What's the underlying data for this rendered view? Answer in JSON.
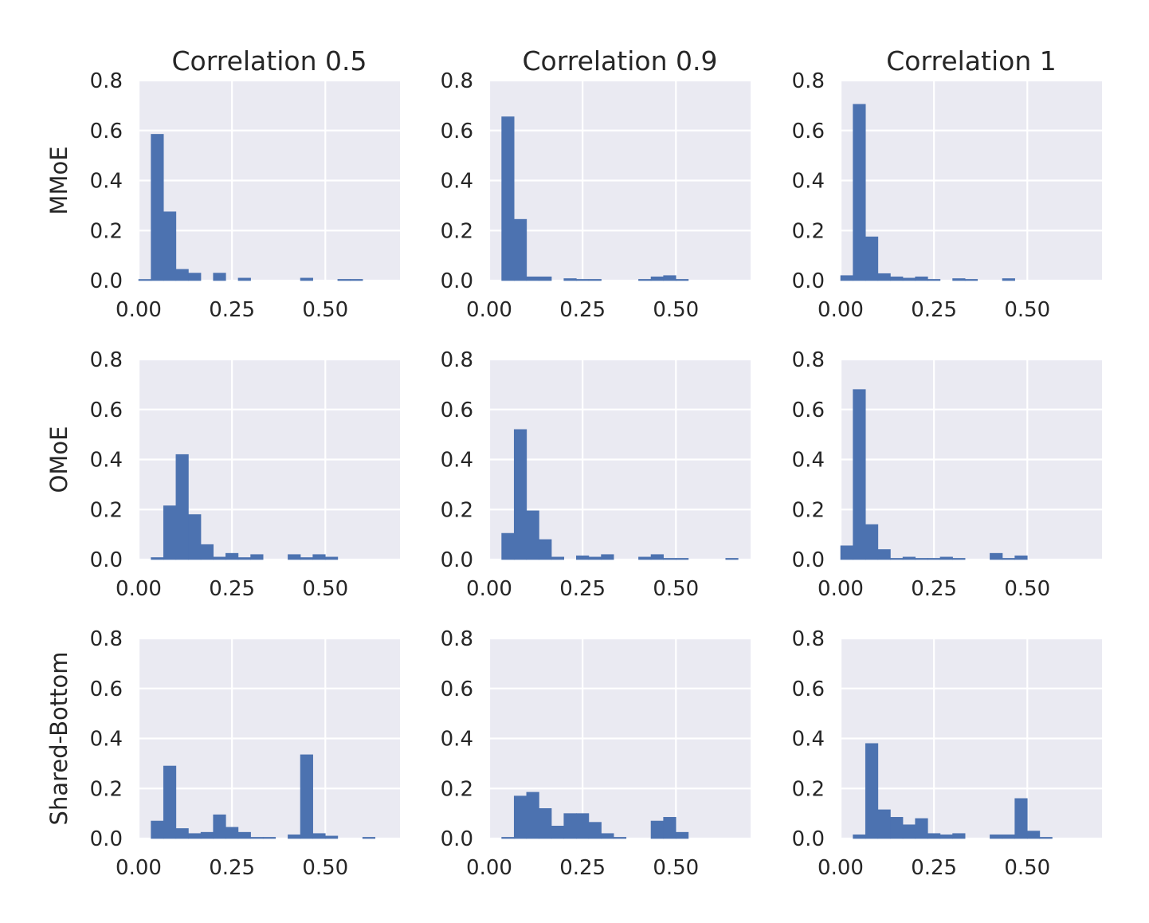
{
  "colors": {
    "bar": "#4c72b0",
    "plot_bg": "#eaeaf2",
    "grid": "#ffffff",
    "text": "#262626"
  },
  "chart_data": {
    "type": "bar",
    "layout": "3x3 grid of histograms",
    "bin_width": 0.0333,
    "xlim": [
      0,
      0.7
    ],
    "ylim": [
      0,
      0.8
    ],
    "xticks": [
      0.0,
      0.25,
      0.5
    ],
    "xtick_labels": [
      "0.00",
      "0.25",
      "0.50"
    ],
    "yticks": [
      0.0,
      0.2,
      0.4,
      0.6,
      0.8
    ],
    "ytick_labels": [
      "0.0",
      "0.2",
      "0.4",
      "0.6",
      "0.8"
    ],
    "grid": true,
    "col_titles": [
      "Correlation 0.5",
      "Correlation 0.9",
      "Correlation 1"
    ],
    "row_labels": [
      "MMoE",
      "OMoE",
      "Shared-Bottom"
    ],
    "bin_starts": [
      0.0,
      0.0333,
      0.0667,
      0.1,
      0.1333,
      0.1667,
      0.2,
      0.2333,
      0.2667,
      0.3,
      0.3333,
      0.3667,
      0.4,
      0.4333,
      0.4667,
      0.5,
      0.5333,
      0.5667,
      0.6,
      0.6333
    ],
    "panels": [
      {
        "row": "MMoE",
        "col": "Correlation 0.5",
        "values": [
          0.003,
          0.585,
          0.275,
          0.045,
          0.03,
          0,
          0.03,
          0,
          0.01,
          0,
          0,
          0,
          0,
          0.01,
          0,
          0,
          0.005,
          0.005,
          0,
          0
        ]
      },
      {
        "row": "MMoE",
        "col": "Correlation 0.9",
        "values": [
          0,
          0.655,
          0.245,
          0.015,
          0.015,
          0,
          0.008,
          0.005,
          0.005,
          0,
          0,
          0,
          0.005,
          0.015,
          0.02,
          0.005,
          0,
          0,
          0,
          0
        ]
      },
      {
        "row": "MMoE",
        "col": "Correlation 1",
        "values": [
          0.02,
          0.705,
          0.175,
          0.028,
          0.015,
          0.01,
          0.015,
          0.005,
          0,
          0.008,
          0.005,
          0,
          0,
          0.008,
          0,
          0,
          0,
          0,
          0,
          0
        ]
      },
      {
        "row": "OMoE",
        "col": "Correlation 0.5",
        "values": [
          0,
          0.008,
          0.215,
          0.42,
          0.18,
          0.06,
          0.01,
          0.025,
          0.008,
          0.02,
          0,
          0,
          0.02,
          0.008,
          0.02,
          0.01,
          0,
          0,
          0,
          0
        ]
      },
      {
        "row": "OMoE",
        "col": "Correlation 0.9",
        "values": [
          0,
          0.105,
          0.52,
          0.195,
          0.08,
          0.01,
          0,
          0.015,
          0.01,
          0.02,
          0,
          0,
          0.01,
          0.02,
          0.005,
          0.005,
          0,
          0,
          0,
          0.005
        ]
      },
      {
        "row": "OMoE",
        "col": "Correlation 1",
        "values": [
          0.055,
          0.68,
          0.14,
          0.04,
          0.005,
          0.01,
          0.005,
          0.005,
          0.01,
          0.005,
          0,
          0,
          0.025,
          0.005,
          0.015,
          0,
          0,
          0,
          0,
          0
        ]
      },
      {
        "row": "Shared-Bottom",
        "col": "Correlation 0.5",
        "values": [
          0,
          0.07,
          0.29,
          0.04,
          0.02,
          0.025,
          0.095,
          0.045,
          0.025,
          0.005,
          0.005,
          0,
          0.015,
          0.335,
          0.02,
          0.01,
          0,
          0,
          0.005,
          0
        ]
      },
      {
        "row": "Shared-Bottom",
        "col": "Correlation 0.9",
        "values": [
          0,
          0.005,
          0.17,
          0.185,
          0.12,
          0.05,
          0.1,
          0.1,
          0.065,
          0.02,
          0.005,
          0,
          0,
          0.07,
          0.085,
          0.025,
          0,
          0,
          0,
          0
        ]
      },
      {
        "row": "Shared-Bottom",
        "col": "Correlation 1",
        "values": [
          0,
          0.015,
          0.38,
          0.115,
          0.085,
          0.055,
          0.08,
          0.02,
          0.015,
          0.02,
          0,
          0,
          0.015,
          0.015,
          0.16,
          0.03,
          0.005,
          0,
          0,
          0
        ]
      }
    ]
  }
}
